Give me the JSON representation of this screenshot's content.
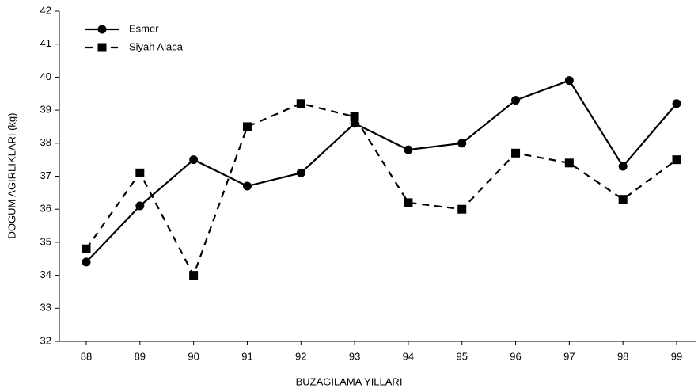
{
  "chart_data": {
    "type": "line",
    "xlabel": "BUZAGILAMA YILLARI",
    "ylabel": "DOGUM AGIRLIKLARI (kg)",
    "categories": [
      "88",
      "89",
      "90",
      "91",
      "92",
      "93",
      "94",
      "95",
      "96",
      "97",
      "98",
      "99"
    ],
    "series": [
      {
        "name": "Esmer",
        "color": "#000000",
        "dash": "solid",
        "marker": "circle",
        "values": [
          34.4,
          36.1,
          37.5,
          36.7,
          37.1,
          38.6,
          37.8,
          38.0,
          39.3,
          39.9,
          37.3,
          39.2
        ]
      },
      {
        "name": "Siyah Alaca",
        "color": "#000000",
        "dash": "dashed",
        "marker": "square",
        "values": [
          34.8,
          37.1,
          34.0,
          38.5,
          39.2,
          38.8,
          36.2,
          36.0,
          37.7,
          37.4,
          36.3,
          37.5
        ]
      }
    ],
    "ylim": [
      32,
      42
    ],
    "yticks": [
      32,
      33,
      34,
      35,
      36,
      37,
      38,
      39,
      40,
      41,
      42
    ],
    "legend": "upper left",
    "grid": false
  }
}
